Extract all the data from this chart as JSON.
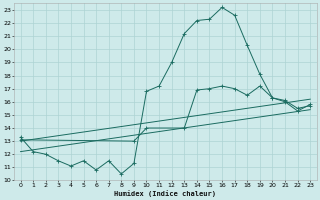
{
  "xlabel": "Humidex (Indice chaleur)",
  "xlim": [
    -0.5,
    23.5
  ],
  "ylim": [
    10,
    23.5
  ],
  "yticks": [
    10,
    11,
    12,
    13,
    14,
    15,
    16,
    17,
    18,
    19,
    20,
    21,
    22,
    23
  ],
  "xticks": [
    0,
    1,
    2,
    3,
    4,
    5,
    6,
    7,
    8,
    9,
    10,
    11,
    12,
    13,
    14,
    15,
    16,
    17,
    18,
    19,
    20,
    21,
    22,
    23
  ],
  "bg_color": "#ceeaea",
  "grid_color": "#aed4d4",
  "line_color": "#1a6b60",
  "line1_x": [
    0,
    1,
    2,
    3,
    4,
    5,
    6,
    7,
    8,
    9,
    10,
    11,
    12,
    13,
    14,
    15,
    16,
    17,
    18,
    19,
    20,
    21,
    22,
    23
  ],
  "line1_y": [
    13.3,
    12.2,
    12.0,
    11.5,
    11.1,
    11.5,
    10.8,
    11.5,
    10.5,
    11.3,
    16.8,
    17.2,
    19.0,
    21.2,
    22.2,
    22.3,
    23.2,
    22.6,
    20.3,
    18.1,
    16.3,
    16.0,
    15.3,
    15.8
  ],
  "line2_x": [
    0,
    23
  ],
  "line2_y": [
    13.0,
    16.2
  ],
  "line3_x": [
    0,
    23
  ],
  "line3_y": [
    12.2,
    15.4
  ],
  "line4_x": [
    0,
    9,
    10,
    13,
    14,
    15,
    16,
    17,
    18,
    19,
    20,
    21,
    22,
    23
  ],
  "line4_y": [
    13.1,
    13.0,
    14.0,
    14.0,
    16.9,
    17.0,
    17.2,
    17.0,
    16.5,
    17.2,
    16.3,
    16.1,
    15.5,
    15.7
  ]
}
